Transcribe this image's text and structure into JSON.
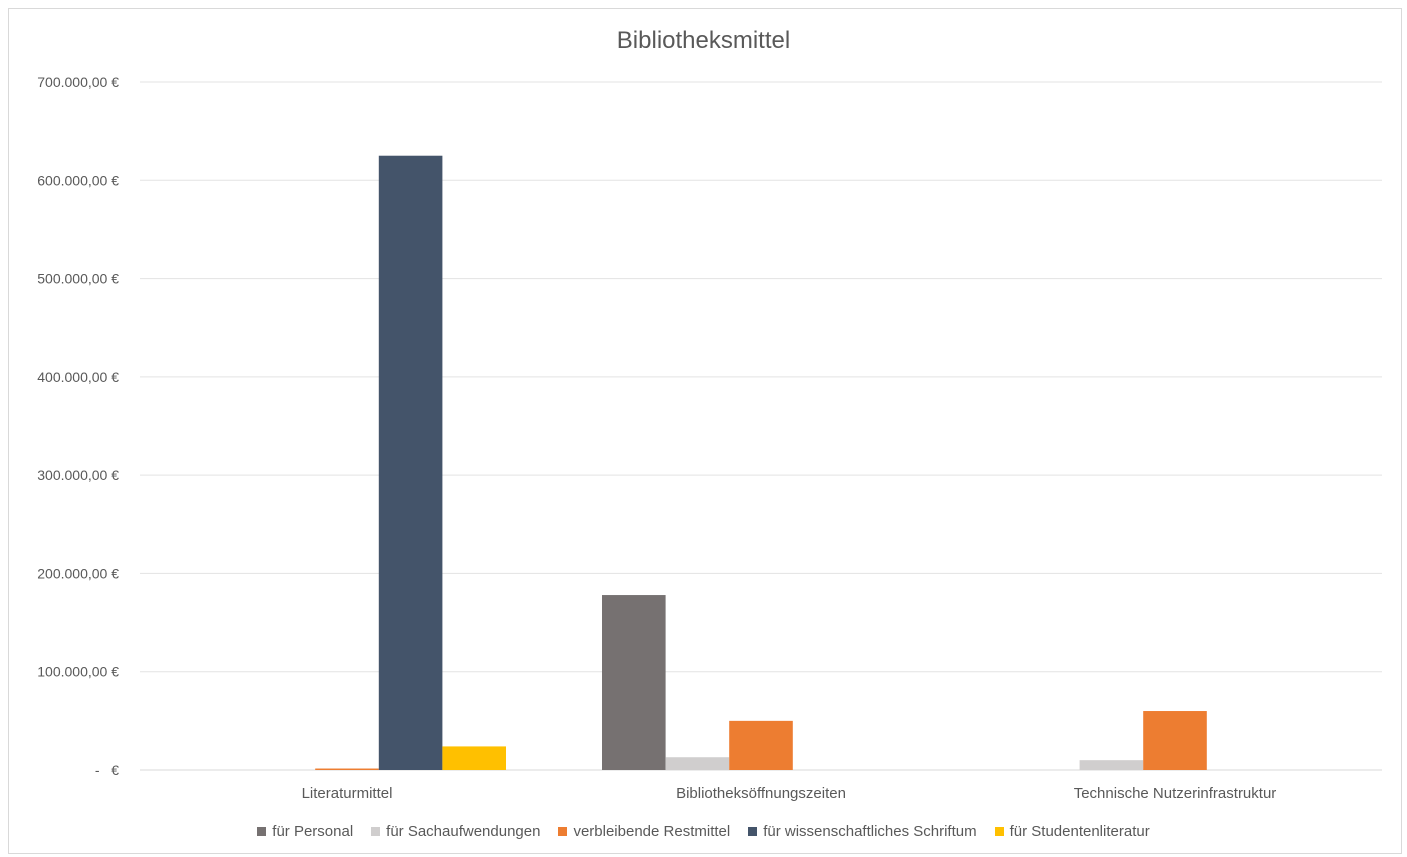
{
  "chart_data": {
    "type": "bar",
    "title": "Bibliotheksmittel",
    "xlabel": "",
    "ylabel": "",
    "ylim": [
      0,
      700000
    ],
    "yticks": [
      {
        "value": 0,
        "label": "-   €"
      },
      {
        "value": 100000,
        "label": "100.000,00 €"
      },
      {
        "value": 200000,
        "label": "200.000,00 €"
      },
      {
        "value": 300000,
        "label": "300.000,00 €"
      },
      {
        "value": 400000,
        "label": "400.000,00 €"
      },
      {
        "value": 500000,
        "label": "500.000,00 €"
      },
      {
        "value": 600000,
        "label": "600.000,00 €"
      },
      {
        "value": 700000,
        "label": "700.000,00 €"
      }
    ],
    "grid": true,
    "legend_position": "bottom",
    "categories": [
      "Literaturmittel",
      "Bibliotheksöffnungszeiten",
      "Technische Nutzerinfrastruktur"
    ],
    "series": [
      {
        "name": "für Personal",
        "color": "#767171",
        "values": [
          0,
          178000,
          0
        ]
      },
      {
        "name": "für Sachaufwendungen",
        "color": "#d0cece",
        "values": [
          0,
          13000,
          10000
        ]
      },
      {
        "name": "verbleibende Restmittel",
        "color": "#ed7d31",
        "values": [
          1500,
          50000,
          60000
        ]
      },
      {
        "name": "für wissenschaftliches Schriftum",
        "color": "#44546a",
        "values": [
          625000,
          0,
          0
        ]
      },
      {
        "name": "für Studentenliteratur",
        "color": "#ffc000",
        "values": [
          24000,
          0,
          0
        ]
      }
    ]
  }
}
